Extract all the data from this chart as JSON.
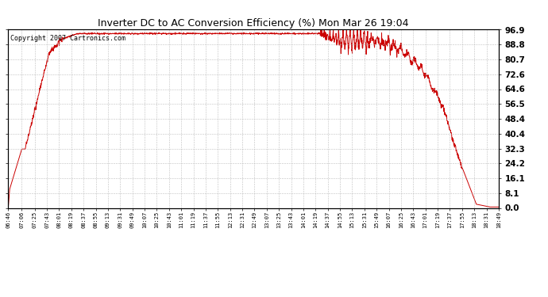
{
  "title": "Inverter DC to AC Conversion Efficiency (%) Mon Mar 26 19:04",
  "copyright_text": "Copyright 2007 Cartronics.com",
  "line_color": "#cc0000",
  "bg_color": "#ffffff",
  "plot_bg_color": "#ffffff",
  "grid_color": "#b0b0b0",
  "y_ticks": [
    0.0,
    8.1,
    16.1,
    24.2,
    32.3,
    40.4,
    48.4,
    56.5,
    64.6,
    72.6,
    80.7,
    88.8,
    96.9
  ],
  "x_labels": [
    "06:46",
    "07:06",
    "07:25",
    "07:43",
    "08:01",
    "08:19",
    "08:37",
    "08:55",
    "09:13",
    "09:31",
    "09:49",
    "10:07",
    "10:25",
    "10:43",
    "11:01",
    "11:19",
    "11:37",
    "11:55",
    "12:13",
    "12:31",
    "12:49",
    "13:07",
    "13:25",
    "13:43",
    "14:01",
    "14:19",
    "14:37",
    "14:55",
    "15:13",
    "15:31",
    "15:49",
    "16:07",
    "16:25",
    "16:43",
    "17:01",
    "17:19",
    "17:37",
    "17:55",
    "18:13",
    "18:31",
    "18:49"
  ],
  "ymin": 0.0,
  "ymax": 96.9,
  "line_width": 0.7
}
